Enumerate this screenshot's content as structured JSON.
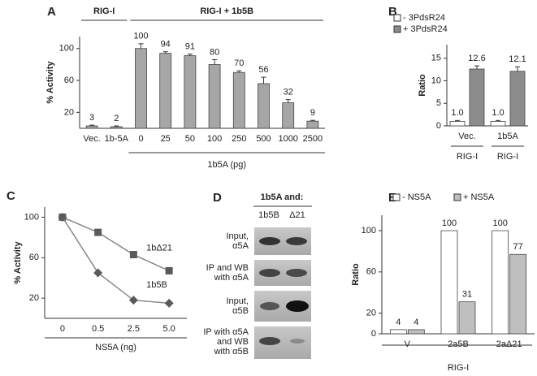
{
  "chart_data": [
    {
      "type": "bar",
      "panel": "A",
      "ylabel": "% Activity",
      "categories": [
        "Vec.",
        "1b-5A",
        "0",
        "25",
        "50",
        "100",
        "250",
        "500",
        "1000",
        "2500"
      ],
      "values": [
        3,
        2,
        100,
        94,
        91,
        80,
        70,
        56,
        32,
        9
      ],
      "errors": [
        1,
        1,
        6,
        2,
        2,
        6,
        2,
        8,
        4,
        1
      ],
      "color": "#a6a6a6",
      "ylim": [
        0,
        115
      ],
      "yticks": [
        20,
        60,
        100
      ],
      "group_labels": [
        "RIG-I",
        "RIG-I + 1b5B"
      ],
      "xlabel": "1b5A (pg)"
    },
    {
      "type": "bar",
      "panel": "B",
      "ylabel": "Ratio",
      "categories": [
        "Vec.",
        "1b5A"
      ],
      "group_labels": [
        "RIG-I",
        "RIG-I"
      ],
      "series": [
        {
          "name": "- 3PdsR24",
          "color": "#ffffff",
          "values": [
            1.0,
            1.0
          ],
          "value_labels": [
            "1.0",
            "1.0"
          ],
          "errors": [
            0.2,
            0.2
          ]
        },
        {
          "name": "+ 3PdsR24",
          "color": "#8c8c8c",
          "values": [
            12.6,
            12.1
          ],
          "errors": [
            0.7,
            1.0
          ]
        }
      ],
      "ylim": [
        0,
        18
      ],
      "yticks": [
        0,
        5,
        10,
        15
      ]
    },
    {
      "type": "line",
      "panel": "C",
      "ylabel": "% Activity",
      "xlabel": "NS5A (ng)",
      "categories": [
        "0",
        "0.5",
        "2.5",
        "5.0"
      ],
      "series": [
        {
          "name": "1bΔ21",
          "color": "#5a5a5a",
          "values": [
            100,
            85,
            63,
            47
          ]
        },
        {
          "name": "1b5B",
          "color": "#5a5a5a",
          "values": [
            100,
            45,
            18,
            15
          ]
        }
      ],
      "ylim": [
        0,
        110
      ],
      "yticks": [
        20,
        60,
        100
      ]
    },
    {
      "type": "bar",
      "panel": "E",
      "ylabel": "Ratio",
      "categories": [
        "V",
        "2a5B",
        "2aΔ21"
      ],
      "group_labels": [
        "RIG-I"
      ],
      "series": [
        {
          "name": "- NS5A",
          "color": "#ffffff",
          "values": [
            4,
            100,
            100
          ]
        },
        {
          "name": "+ NS5A",
          "color": "#bfbfbf",
          "values": [
            4,
            31,
            77
          ]
        }
      ],
      "ylim": [
        0,
        115
      ],
      "yticks": [
        0,
        20,
        60,
        100
      ]
    }
  ],
  "blot": {
    "panel": "D",
    "header": "1b5A and:",
    "columns": [
      "1b5B",
      "Δ21"
    ],
    "rows": [
      [
        "Input,",
        "α5A"
      ],
      [
        "IP and WB",
        "with α5A"
      ],
      [
        "Input,",
        "α5B"
      ],
      [
        "IP with α5A",
        "and WB",
        "with α5B"
      ]
    ]
  }
}
